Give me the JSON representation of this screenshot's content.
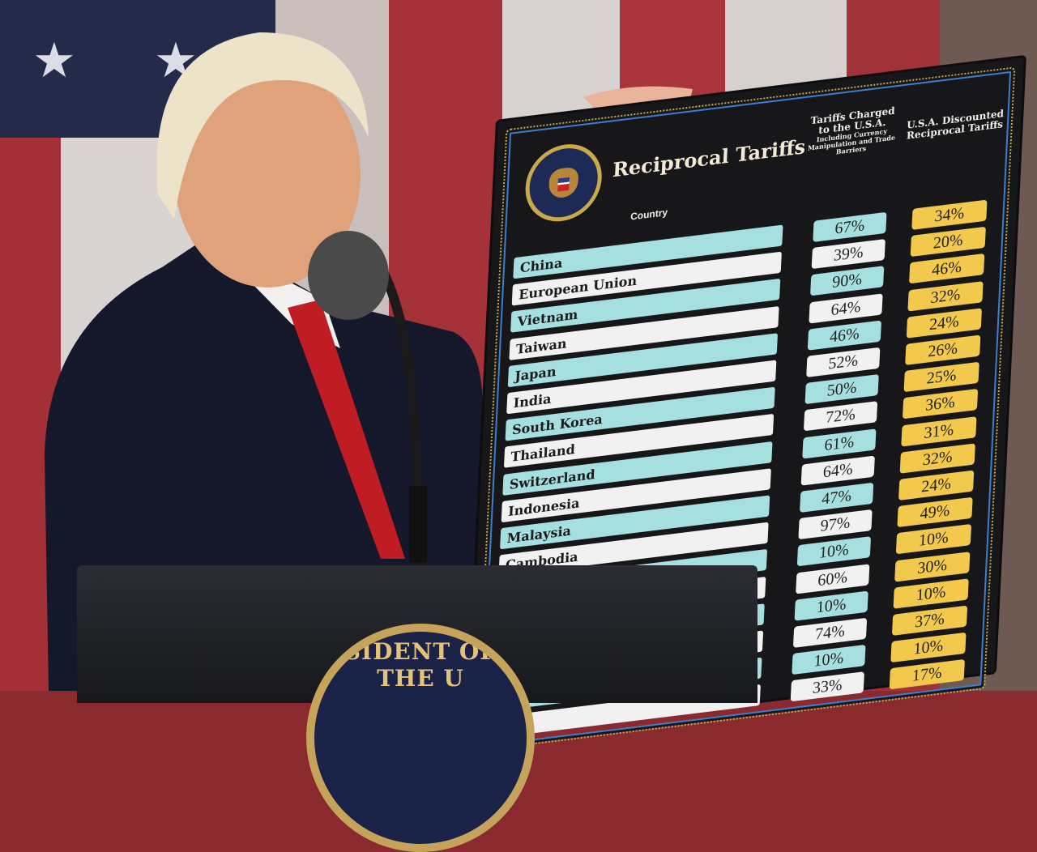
{
  "board": {
    "title": "Reciprocal Tariffs",
    "country_header": "Country",
    "col1_header": "Tariffs Charged to the U.S.A.",
    "col1_subheader": "Including Currency Manipulation and Trade Barriers",
    "col2_header": "U.S.A. Discounted Reciprocal Tariffs",
    "rows": [
      {
        "country": "China",
        "charged": "67%",
        "discounted": "34%"
      },
      {
        "country": "European Union",
        "charged": "39%",
        "discounted": "20%"
      },
      {
        "country": "Vietnam",
        "charged": "90%",
        "discounted": "46%"
      },
      {
        "country": "Taiwan",
        "charged": "64%",
        "discounted": "32%"
      },
      {
        "country": "Japan",
        "charged": "46%",
        "discounted": "24%"
      },
      {
        "country": "India",
        "charged": "52%",
        "discounted": "26%"
      },
      {
        "country": "South Korea",
        "charged": "50%",
        "discounted": "25%"
      },
      {
        "country": "Thailand",
        "charged": "72%",
        "discounted": "36%"
      },
      {
        "country": "Switzerland",
        "charged": "61%",
        "discounted": "31%"
      },
      {
        "country": "Indonesia",
        "charged": "64%",
        "discounted": "32%"
      },
      {
        "country": "Malaysia",
        "charged": "47%",
        "discounted": "24%"
      },
      {
        "country": "Cambodia",
        "charged": "97%",
        "discounted": "49%"
      },
      {
        "country": "",
        "charged": "10%",
        "discounted": "10%"
      },
      {
        "country": "",
        "charged": "60%",
        "discounted": "30%"
      },
      {
        "country": "",
        "charged": "10%",
        "discounted": "10%"
      },
      {
        "country": "",
        "charged": "74%",
        "discounted": "37%"
      },
      {
        "country": "",
        "charged": "10%",
        "discounted": "10%"
      },
      {
        "country": "",
        "charged": "33%",
        "discounted": "17%"
      }
    ]
  },
  "podium": {
    "seal_text": "SIDENT OF THE U"
  },
  "colors": {
    "teal": "#a6dfe0",
    "white": "#f1f1f1",
    "gold": "#f2c94c",
    "board": "#17171a"
  }
}
